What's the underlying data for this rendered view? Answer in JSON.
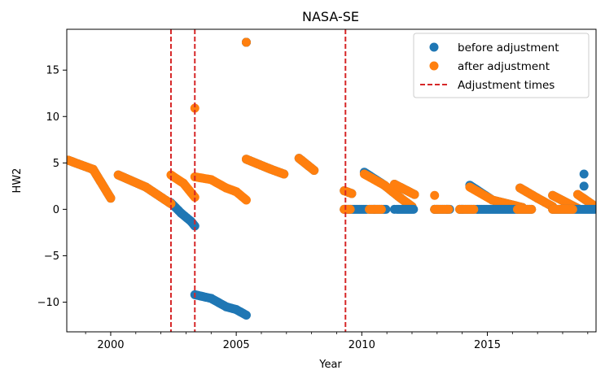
{
  "chart_data": {
    "type": "scatter",
    "title": "NASA-SE",
    "xlabel": "Year",
    "ylabel": "HW2",
    "xlim": [
      1998.25,
      2019.33
    ],
    "ylim": [
      -13.2,
      19.4
    ],
    "xticks": [
      2000,
      2005,
      2010,
      2015
    ],
    "xtick_labels": [
      "2000",
      "2005",
      "2010",
      "2015"
    ],
    "yticks": [
      -10,
      -5,
      0,
      5,
      10,
      15
    ],
    "ytick_labels": [
      "−10",
      "−5",
      "0",
      "5",
      "10",
      "15"
    ],
    "legend_position": "top-right",
    "colors": {
      "before": "#1f77b4",
      "after": "#ff7f0e",
      "adjustment": "#d62728"
    },
    "series": [
      {
        "name": "before adjustment",
        "marker": "circle",
        "segments": [
          [
            [
              1998.3,
              5.3
            ],
            [
              1999.3,
              4.3
            ],
            [
              2000.0,
              1.2
            ]
          ],
          [
            [
              2000.3,
              3.7
            ],
            [
              2001.4,
              2.4
            ],
            [
              2002.4,
              0.6
            ]
          ],
          [
            [
              2002.4,
              0.7
            ],
            [
              2002.8,
              -0.4
            ],
            [
              2003.2,
              -1.3
            ],
            [
              2003.35,
              -1.8
            ]
          ],
          [
            [
              2003.35,
              -9.2
            ],
            [
              2004.0,
              -9.6
            ],
            [
              2004.6,
              -10.5
            ],
            [
              2005.0,
              -10.8
            ],
            [
              2005.4,
              -11.4
            ]
          ],
          [
            [
              2005.4,
              18.0
            ],
            [
              2005.4,
              18.0
            ]
          ],
          [
            [
              2005.4,
              5.4
            ],
            [
              2006.3,
              4.4
            ],
            [
              2006.9,
              3.8
            ]
          ],
          [
            [
              2007.5,
              5.5
            ],
            [
              2008.1,
              4.2
            ]
          ],
          [
            [
              2009.3,
              2.0
            ],
            [
              2009.6,
              1.7
            ]
          ],
          [
            [
              2010.1,
              4.0
            ],
            [
              2010.9,
              2.6
            ],
            [
              2011.5,
              1.3
            ],
            [
              2012.0,
              0.3
            ]
          ],
          [
            [
              2011.3,
              2.7
            ],
            [
              2012.1,
              1.6
            ]
          ],
          [
            [
              2014.3,
              2.6
            ],
            [
              2015.2,
              1.0
            ],
            [
              2016.4,
              0.2
            ]
          ],
          [
            [
              2016.3,
              2.3
            ],
            [
              2017.0,
              1.2
            ],
            [
              2017.6,
              0.3
            ]
          ],
          [
            [
              2017.6,
              1.5
            ],
            [
              2018.6,
              0.1
            ]
          ],
          [
            [
              2018.6,
              1.6
            ],
            [
              2019.3,
              0.3
            ]
          ]
        ],
        "points": [
          [
            2018.85,
            3.8
          ],
          [
            2018.85,
            2.5
          ],
          [
            2010.5,
            0.0
          ],
          [
            2011.3,
            0.0
          ],
          [
            2012.9,
            0.0
          ],
          [
            2013.4,
            0.0
          ],
          [
            2014.0,
            0.0
          ]
        ]
      },
      {
        "name": "after adjustment",
        "marker": "circle",
        "segments": [
          [
            [
              1998.3,
              5.3
            ],
            [
              1999.3,
              4.3
            ],
            [
              2000.0,
              1.2
            ]
          ],
          [
            [
              2000.3,
              3.7
            ],
            [
              2001.4,
              2.4
            ],
            [
              2002.4,
              0.6
            ]
          ],
          [
            [
              2002.4,
              3.7
            ],
            [
              2002.9,
              2.8
            ],
            [
              2003.35,
              1.3
            ]
          ],
          [
            [
              2003.35,
              3.5
            ],
            [
              2004.0,
              3.2
            ],
            [
              2004.6,
              2.3
            ],
            [
              2005.0,
              1.9
            ],
            [
              2005.4,
              1.0
            ]
          ],
          [
            [
              2005.4,
              5.4
            ],
            [
              2006.3,
              4.4
            ],
            [
              2006.9,
              3.8
            ]
          ],
          [
            [
              2007.5,
              5.5
            ],
            [
              2008.1,
              4.2
            ]
          ],
          [
            [
              2009.3,
              2.0
            ],
            [
              2009.6,
              1.7
            ]
          ],
          [
            [
              2010.1,
              3.8
            ],
            [
              2010.9,
              2.6
            ],
            [
              2011.5,
              1.3
            ],
            [
              2012.0,
              0.3
            ]
          ],
          [
            [
              2011.3,
              2.7
            ],
            [
              2012.1,
              1.6
            ]
          ],
          [
            [
              2014.3,
              2.4
            ],
            [
              2015.2,
              1.0
            ],
            [
              2016.4,
              0.2
            ]
          ],
          [
            [
              2016.3,
              2.3
            ],
            [
              2017.0,
              1.2
            ],
            [
              2017.6,
              0.3
            ]
          ],
          [
            [
              2017.6,
              1.5
            ],
            [
              2018.6,
              0.1
            ]
          ],
          [
            [
              2018.6,
              1.6
            ],
            [
              2019.3,
              0.3
            ]
          ]
        ],
        "points": [
          [
            2003.35,
            10.9
          ],
          [
            2005.4,
            18.0
          ],
          [
            2012.9,
            1.5
          ],
          [
            2013.0,
            0.0
          ],
          [
            2009.3,
            0.0
          ],
          [
            2013.9,
            0.0
          ],
          [
            2014.6,
            0.0
          ]
        ]
      }
    ],
    "adjustment_line": {
      "name": "Adjustment times",
      "x": [
        2002.4,
        2003.35,
        2009.35
      ]
    }
  }
}
